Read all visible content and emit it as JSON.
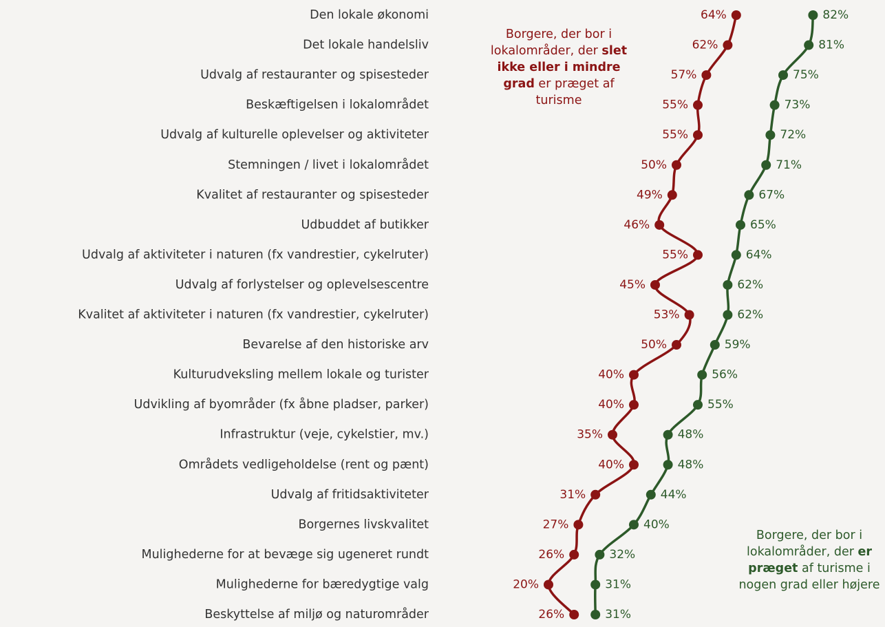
{
  "chart_data": {
    "type": "line",
    "categories": [
      "Den lokale økonomi",
      "Det lokale handelsliv",
      "Udvalg af restauranter og spisesteder",
      "Beskæftigelsen i lokalområdet",
      "Udvalg af kulturelle oplevelser og aktiviteter",
      "Stemningen / livet i lokalområdet",
      "Kvalitet af restauranter og spisesteder",
      "Udbuddet af butikker",
      "Udvalg af aktiviteter i naturen (fx vandrestier, cykelruter)",
      "Udvalg af forlystelser og oplevelsescentre",
      "Kvalitet af aktiviteter i naturen (fx vandrestier, cykelruter)",
      "Bevarelse af den historiske arv",
      "Kulturudveksling mellem lokale og turister",
      "Udvikling af byområder (fx åbne pladser, parker)",
      "Infrastruktur (veje, cykelstier, mv.)",
      "Områdets vedligeholdelse (rent og pænt)",
      "Udvalg af fritidsaktiviteter",
      "Borgernes livskvalitet",
      "Mulighederne for at bevæge sig ugeneret rundt",
      "Mulighederne for bæredygtige valg",
      "Beskyttelse af miljø og naturområder"
    ],
    "xlim": [
      0,
      100
    ],
    "series": [
      {
        "color": "#8b1414",
        "label_side": "left",
        "values": [
          64,
          62,
          57,
          55,
          55,
          50,
          49,
          46,
          55,
          45,
          53,
          50,
          40,
          40,
          35,
          40,
          31,
          27,
          26,
          20,
          26
        ],
        "value_labels": [
          "64%",
          "62%",
          "57%",
          "55%",
          "55%",
          "50%",
          "49%",
          "46%",
          "55%",
          "45%",
          "53%",
          "50%",
          "40%",
          "40%",
          "35%",
          "40%",
          "31%",
          "27%",
          "26%",
          "20%",
          "26%"
        ]
      },
      {
        "color": "#2d5a2a",
        "label_side": "right",
        "values": [
          82,
          81,
          75,
          73,
          72,
          71,
          67,
          65,
          64,
          62,
          62,
          59,
          56,
          55,
          48,
          48,
          44,
          40,
          32,
          31,
          31
        ],
        "value_labels": [
          "82%",
          "81%",
          "75%",
          "73%",
          "72%",
          "71%",
          "67%",
          "65%",
          "64%",
          "62%",
          "62%",
          "59%",
          "56%",
          "55%",
          "48%",
          "48%",
          "44%",
          "40%",
          "32%",
          "31%",
          "31%"
        ]
      }
    ],
    "annotations": [
      {
        "parts": [
          {
            "text": "Borgere, der bor i lokalområder, der "
          },
          {
            "text": "slet ikke eller i mindre grad",
            "bold": true
          },
          {
            "text": " er præget af turisme"
          }
        ]
      },
      {
        "parts": [
          {
            "text": "Borgere, der bor i lokalområder, der "
          },
          {
            "text": "er præget",
            "bold": true
          },
          {
            "text": " af turisme i nogen grad eller højere"
          }
        ]
      }
    ]
  }
}
